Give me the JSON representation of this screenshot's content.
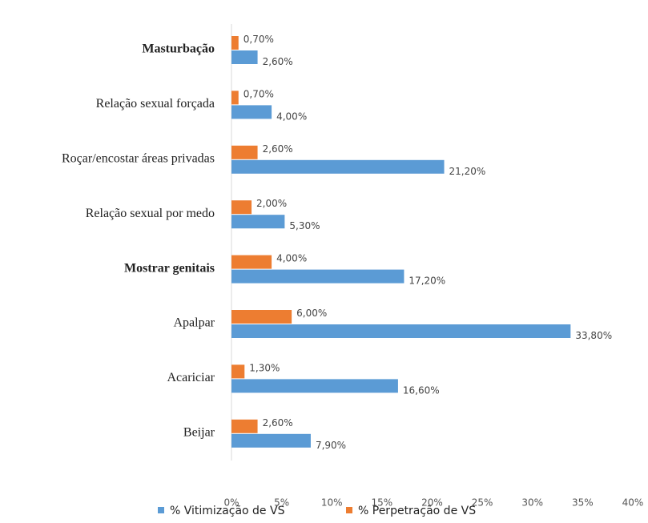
{
  "chart_data": {
    "type": "bar",
    "orientation": "horizontal",
    "categories": [
      "Masturbação",
      "Relação sexual forçada",
      "Roçar/encostar áreas privadas",
      "Relação sexual por medo",
      "Mostrar genitais",
      "Apalpar",
      "Acariciar",
      "Beijar"
    ],
    "series": [
      {
        "name": "% Vitimização de VS",
        "color": "#5b9bd5",
        "values": [
          2.6,
          4.0,
          21.2,
          5.3,
          17.2,
          33.8,
          16.6,
          7.9
        ],
        "value_labels": [
          "2,60%",
          "4,00%",
          "21,20%",
          "5,30%",
          "17,20%",
          "33,80%",
          "16,60%",
          "7,90%"
        ]
      },
      {
        "name": "% Perpetração de VS",
        "color": "#ed7d31",
        "values": [
          0.7,
          0.7,
          2.6,
          2.0,
          4.0,
          6.0,
          1.3,
          2.6
        ],
        "value_labels": [
          "0,70%",
          "0,70%",
          "2,60%",
          "2,00%",
          "4,00%",
          "6,00%",
          "1,30%",
          "2,60%"
        ]
      }
    ],
    "xlim": [
      0,
      40
    ],
    "xticks": [
      {
        "value": 0,
        "label": "0%"
      },
      {
        "value": 5,
        "label": "5%"
      },
      {
        "value": 10,
        "label": "10%"
      },
      {
        "value": 15,
        "label": "15%"
      },
      {
        "value": 20,
        "label": "20%"
      },
      {
        "value": 25,
        "label": "25%"
      },
      {
        "value": 30,
        "label": "30%"
      },
      {
        "value": 35,
        "label": "35%"
      },
      {
        "value": 40,
        "label": "40%"
      }
    ],
    "legend": "bottom"
  }
}
